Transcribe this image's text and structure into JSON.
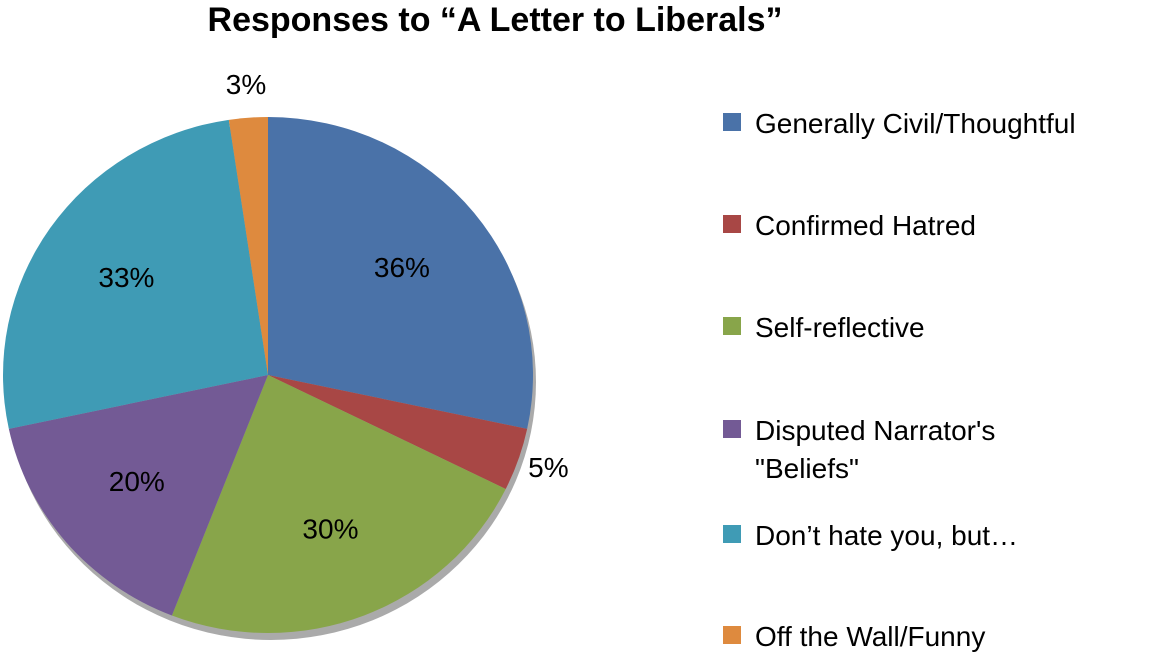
{
  "chart_data": {
    "type": "pie",
    "title": "Responses to “A Letter to Liberals”",
    "categories": [
      "Generally Civil/Thoughtful",
      "Confirmed Hatred",
      "Self-reflective",
      "Disputed Narrator's \"Beliefs\"",
      "Don’t hate you, but…",
      "Off the Wall/Funny"
    ],
    "values": [
      36,
      5,
      30,
      20,
      33,
      3
    ],
    "value_labels": [
      "36%",
      "5%",
      "30%",
      "20%",
      "33%",
      "3%"
    ],
    "colors": [
      "#4a72a8",
      "#a84745",
      "#88a54a",
      "#735a95",
      "#3f9bb5",
      "#de8a3e"
    ],
    "legend": "right"
  }
}
